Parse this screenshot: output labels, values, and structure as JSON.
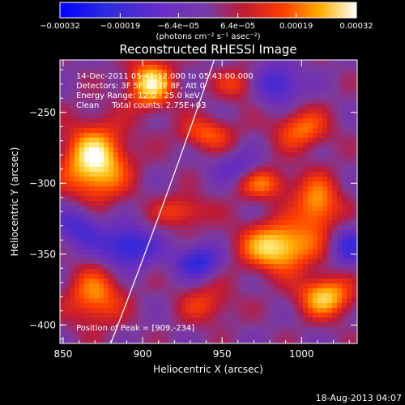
{
  "chart_data": {
    "type": "heatmap",
    "title": "Reconstructed RHESSI Image",
    "xlabel": "Heliocentric X (arcsec)",
    "ylabel": "Heliocentric Y (arcsec)",
    "xlim": [
      848,
      1035
    ],
    "ylim": [
      -413,
      -213
    ],
    "x_ticks": [
      850,
      900,
      950,
      1000
    ],
    "y_ticks": [
      -250,
      -300,
      -350,
      -400
    ],
    "x_tick_labels": [
      "850",
      "900",
      "950",
      "1000"
    ],
    "y_tick_labels": [
      "−250",
      "−300",
      "−350",
      "−400"
    ],
    "colorbar": {
      "range": [
        -0.00032,
        0.00032
      ],
      "ticks": [
        -0.00032,
        -0.00019,
        -6.4e-05,
        6.4e-05,
        0.00019,
        0.00032
      ],
      "tick_labels": [
        "−0.00032",
        "−0.00019",
        "−6.4e−05",
        "6.4e−05",
        "0.00019",
        "0.00032"
      ],
      "unit_label": "(photons cm⁻² s⁻¹ asec⁻²)"
    },
    "annotations": [
      "14-Dec-2011 05:41:12.000 to 05:43:00.000",
      "Detectors: 3F 5F 6F 7F 8F, Att 0",
      "Energy Range: 12.0 - 25.0 keV",
      "Clean     Total counts: 2.75E+03"
    ],
    "peak_label": "Position of Peak = [909,-234]",
    "peak": [
      909,
      -234
    ],
    "limb_curve": [
      [
        880,
        -413
      ],
      [
        945,
        -213
      ]
    ],
    "sources": [
      {
        "x": 870,
        "y": -285,
        "level": 0.00032,
        "sx": 14,
        "sy": 18
      },
      {
        "x": 905,
        "y": -230,
        "level": 0.00028,
        "sx": 10,
        "sy": 12
      },
      {
        "x": 985,
        "y": -345,
        "level": 0.0003,
        "sx": 16,
        "sy": 12
      },
      {
        "x": 1010,
        "y": -315,
        "level": 0.00022,
        "sx": 10,
        "sy": 14
      },
      {
        "x": 1015,
        "y": -380,
        "level": 0.00026,
        "sx": 12,
        "sy": 10
      },
      {
        "x": 975,
        "y": -300,
        "level": 0.00018,
        "sx": 12,
        "sy": 8
      },
      {
        "x": 940,
        "y": -265,
        "level": 0.00016,
        "sx": 12,
        "sy": 8
      },
      {
        "x": 1000,
        "y": -262,
        "level": 0.00018,
        "sx": 12,
        "sy": 10
      },
      {
        "x": 925,
        "y": -320,
        "level": 0.00014,
        "sx": 12,
        "sy": 8
      },
      {
        "x": 870,
        "y": -380,
        "level": 0.0002,
        "sx": 12,
        "sy": 14
      },
      {
        "x": 940,
        "y": -385,
        "level": 0.00012,
        "sx": 12,
        "sy": 10
      },
      {
        "x": 960,
        "y": -230,
        "level": 0.00012,
        "sx": 10,
        "sy": 8
      },
      {
        "x": 890,
        "y": -345,
        "level": -0.00022,
        "sx": 12,
        "sy": 10
      },
      {
        "x": 985,
        "y": -230,
        "level": -0.00018,
        "sx": 10,
        "sy": 10
      },
      {
        "x": 1030,
        "y": -345,
        "level": -0.00016,
        "sx": 8,
        "sy": 10
      },
      {
        "x": 935,
        "y": -355,
        "level": -0.0002,
        "sx": 10,
        "sy": 8
      },
      {
        "x": 860,
        "y": -330,
        "level": -0.00016,
        "sx": 10,
        "sy": 10
      },
      {
        "x": 960,
        "y": -290,
        "level": -0.00012,
        "sx": 10,
        "sy": 8
      }
    ]
  },
  "footer_timestamp": "18-Aug-2013 04:07"
}
